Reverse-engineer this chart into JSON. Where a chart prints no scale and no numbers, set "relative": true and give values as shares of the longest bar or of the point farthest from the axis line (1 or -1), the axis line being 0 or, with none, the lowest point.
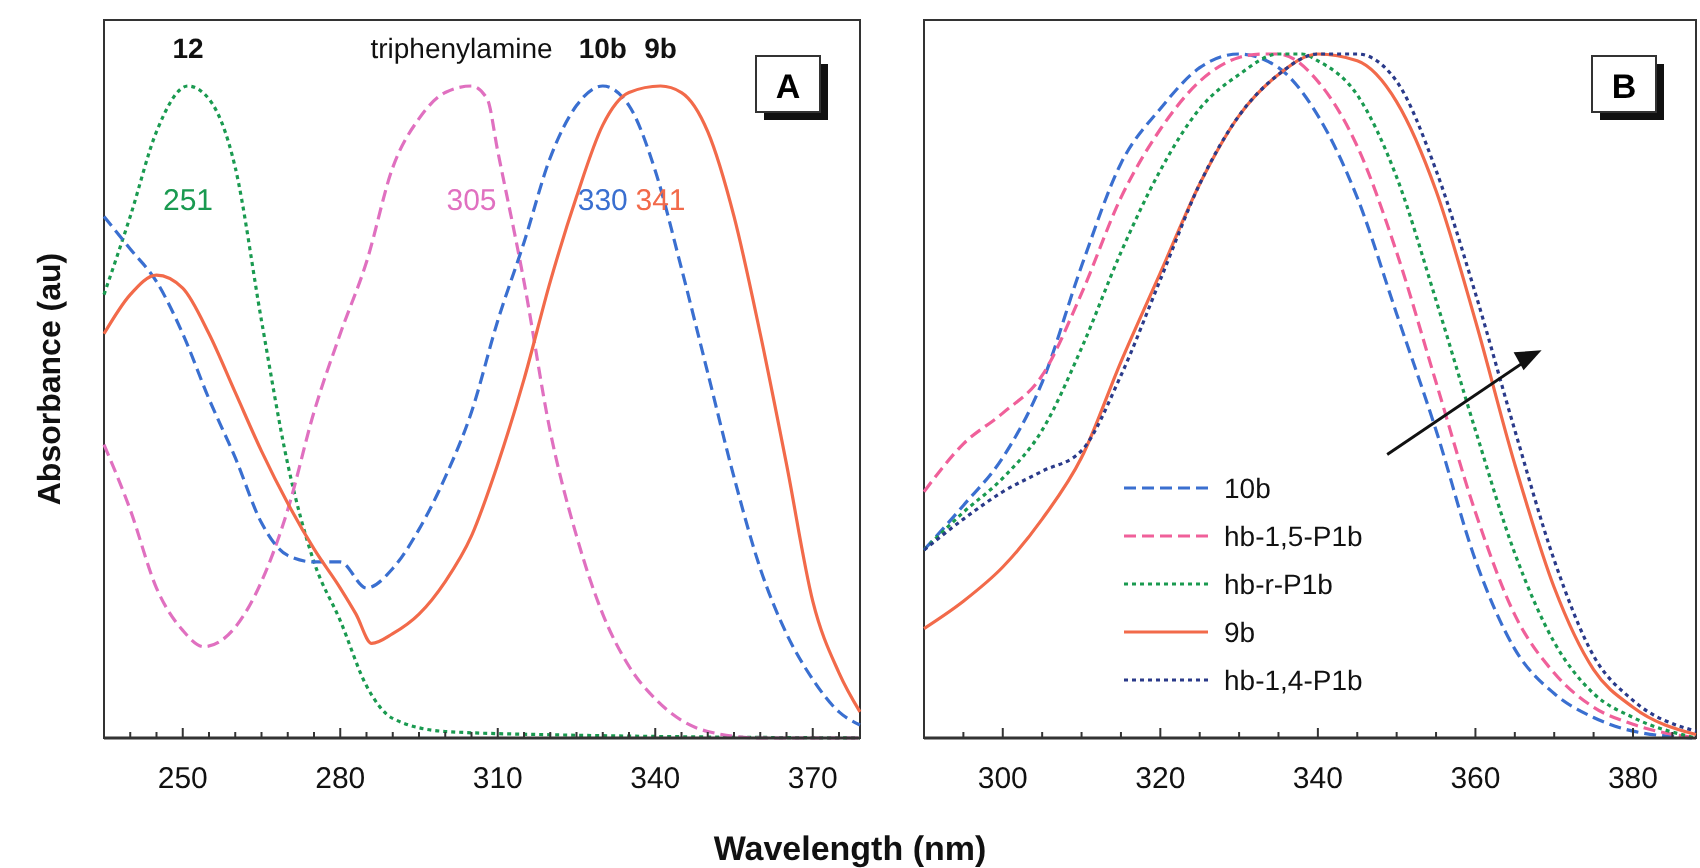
{
  "chart_data": [
    {
      "type": "line",
      "title": "A",
      "xlabel": "Wavelength (nm)",
      "ylabel": "Absorbance (au)",
      "relative": true,
      "xlim": [
        235,
        379
      ],
      "xticks": [
        {
          "value": 240,
          "label": null
        },
        {
          "value": 245,
          "label": null
        },
        250,
        {
          "value": 255,
          "label": null
        },
        {
          "value": 260,
          "label": null
        },
        {
          "value": 265,
          "label": null
        },
        {
          "value": 270,
          "label": null
        },
        {
          "value": 275,
          "label": null
        },
        280,
        {
          "value": 285,
          "label": null
        },
        {
          "value": 290,
          "label": null
        },
        {
          "value": 295,
          "label": null
        },
        {
          "value": 300,
          "label": null
        },
        {
          "value": 305,
          "label": null
        },
        310,
        {
          "value": 315,
          "label": null
        },
        {
          "value": 320,
          "label": null
        },
        {
          "value": 325,
          "label": null
        },
        {
          "value": 330,
          "label": null
        },
        {
          "value": 335,
          "label": null
        },
        340,
        {
          "value": 345,
          "label": null
        },
        {
          "value": 350,
          "label": null
        },
        {
          "value": 355,
          "label": null
        },
        {
          "value": 360,
          "label": null
        },
        {
          "value": 365,
          "label": null
        },
        370,
        {
          "value": 375,
          "label": null
        }
      ],
      "legend": false,
      "series": [
        {
          "name": "12",
          "color": "#1a9a50",
          "line_style": "dotted",
          "x": [
            235,
            240,
            245,
            251,
            255,
            260,
            265,
            270,
            275,
            280,
            285,
            290,
            300,
            320,
            379
          ],
          "values": [
            0.68,
            0.8,
            0.93,
            1.0,
            0.98,
            0.875,
            0.64,
            0.42,
            0.27,
            0.18,
            0.08,
            0.03,
            0.01,
            0.005,
            0
          ]
        },
        {
          "name": "triphenylamine",
          "color": "#e070c0",
          "line_style": "dashed",
          "x": [
            235,
            240,
            245,
            250,
            254,
            260,
            265,
            270,
            275,
            280,
            285,
            290,
            295,
            300,
            305,
            308,
            310,
            315,
            320,
            325,
            330,
            335,
            340,
            350,
            360,
            379
          ],
          "values": [
            0.45,
            0.35,
            0.23,
            0.165,
            0.14,
            0.17,
            0.24,
            0.35,
            0.5,
            0.62,
            0.73,
            0.875,
            0.95,
            0.99,
            1.0,
            0.98,
            0.9,
            0.7,
            0.47,
            0.31,
            0.19,
            0.11,
            0.06,
            0.01,
            0,
            0
          ]
        },
        {
          "name": "10b",
          "color": "#3a6fd0",
          "line_style": "dashed",
          "x": [
            235,
            240,
            245,
            250,
            255,
            260,
            265,
            270,
            275,
            280,
            285,
            290,
            295,
            300,
            305,
            310,
            315,
            320,
            325,
            330,
            335,
            340,
            345,
            350,
            355,
            360,
            365,
            370,
            375,
            379
          ],
          "values": [
            0.8,
            0.75,
            0.7,
            0.62,
            0.52,
            0.43,
            0.33,
            0.28,
            0.27,
            0.27,
            0.23,
            0.26,
            0.32,
            0.4,
            0.5,
            0.64,
            0.76,
            0.89,
            0.97,
            1.0,
            0.97,
            0.87,
            0.72,
            0.56,
            0.4,
            0.26,
            0.16,
            0.09,
            0.04,
            0.02
          ]
        },
        {
          "name": "9b",
          "color": "#f26a4a",
          "line_style": "solid",
          "x": [
            235,
            240,
            245,
            250,
            255,
            260,
            265,
            270,
            275,
            280,
            283,
            286,
            290,
            295,
            300,
            305,
            310,
            315,
            320,
            325,
            330,
            335,
            341,
            345,
            350,
            355,
            360,
            365,
            370,
            375,
            379
          ],
          "values": [
            0.62,
            0.68,
            0.71,
            0.69,
            0.62,
            0.53,
            0.44,
            0.36,
            0.29,
            0.23,
            0.19,
            0.145,
            0.16,
            0.19,
            0.24,
            0.31,
            0.42,
            0.55,
            0.7,
            0.83,
            0.94,
            0.99,
            1.0,
            0.99,
            0.93,
            0.8,
            0.62,
            0.42,
            0.21,
            0.1,
            0.04
          ]
        }
      ],
      "annotations": [
        "251",
        "305",
        "330",
        "341"
      ]
    },
    {
      "type": "line",
      "title": "B",
      "relative": true,
      "xlim": [
        290,
        388
      ],
      "xticks": [
        {
          "value": 295,
          "label": null
        },
        300,
        {
          "value": 305,
          "label": null
        },
        {
          "value": 310,
          "label": null
        },
        {
          "value": 315,
          "label": null
        },
        320,
        {
          "value": 325,
          "label": null
        },
        {
          "value": 330,
          "label": null
        },
        {
          "value": 335,
          "label": null
        },
        340,
        {
          "value": 345,
          "label": null
        },
        {
          "value": 350,
          "label": null
        },
        {
          "value": 355,
          "label": null
        },
        360,
        {
          "value": 365,
          "label": null
        },
        {
          "value": 370,
          "label": null
        },
        {
          "value": 375,
          "label": null
        },
        380,
        {
          "value": 385,
          "label": null
        }
      ],
      "legend": "bottom",
      "series": [
        {
          "name": "10b",
          "color": "#3a6fd0",
          "line_style": "dashed",
          "x": [
            290,
            295,
            300,
            305,
            310,
            315,
            320,
            325,
            330,
            335,
            340,
            345,
            350,
            355,
            360,
            365,
            370,
            375,
            380,
            388
          ],
          "values": [
            0.275,
            0.34,
            0.41,
            0.52,
            0.69,
            0.84,
            0.92,
            0.98,
            1.0,
            0.98,
            0.91,
            0.79,
            0.62,
            0.45,
            0.26,
            0.13,
            0.065,
            0.03,
            0.01,
            0
          ]
        },
        {
          "name": "hb-1,5-P1b",
          "color": "#f0609a",
          "line_style": "dashed",
          "x": [
            290,
            295,
            300,
            305,
            310,
            315,
            320,
            325,
            330,
            333,
            335,
            340,
            345,
            350,
            355,
            360,
            365,
            370,
            375,
            380,
            388
          ],
          "values": [
            0.36,
            0.43,
            0.475,
            0.53,
            0.65,
            0.79,
            0.89,
            0.96,
            0.995,
            1.0,
            1.0,
            0.96,
            0.865,
            0.71,
            0.52,
            0.33,
            0.18,
            0.095,
            0.045,
            0.02,
            0
          ]
        },
        {
          "name": "hb-r-P1b",
          "color": "#1a9a50",
          "line_style": "dotted",
          "x": [
            290,
            295,
            300,
            305,
            310,
            315,
            320,
            325,
            330,
            335,
            338,
            340,
            345,
            350,
            355,
            360,
            365,
            370,
            375,
            380,
            388
          ],
          "values": [
            0.275,
            0.33,
            0.38,
            0.45,
            0.57,
            0.71,
            0.83,
            0.92,
            0.97,
            1.0,
            1.0,
            0.99,
            0.94,
            0.82,
            0.64,
            0.45,
            0.27,
            0.14,
            0.065,
            0.03,
            0
          ]
        },
        {
          "name": "9b",
          "color": "#f26a4a",
          "line_style": "solid",
          "x": [
            290,
            295,
            300,
            305,
            310,
            315,
            320,
            325,
            330,
            335,
            340,
            345,
            350,
            355,
            360,
            365,
            370,
            375,
            380,
            388
          ],
          "values": [
            0.16,
            0.2,
            0.25,
            0.32,
            0.41,
            0.55,
            0.68,
            0.81,
            0.91,
            0.97,
            1.0,
            0.99,
            0.93,
            0.8,
            0.61,
            0.4,
            0.22,
            0.1,
            0.045,
            0.005
          ]
        },
        {
          "name": "hb-1,4-P1b",
          "color": "#2a3a8a",
          "line_style": "dotted",
          "x": [
            290,
            295,
            300,
            305,
            310,
            315,
            320,
            325,
            330,
            335,
            340,
            345,
            350,
            355,
            360,
            365,
            370,
            375,
            380,
            388
          ],
          "values": [
            0.275,
            0.32,
            0.36,
            0.39,
            0.42,
            0.53,
            0.67,
            0.81,
            0.91,
            0.97,
            1.0,
            1.0,
            0.96,
            0.83,
            0.65,
            0.45,
            0.26,
            0.12,
            0.055,
            0.01
          ]
        }
      ]
    }
  ]
}
